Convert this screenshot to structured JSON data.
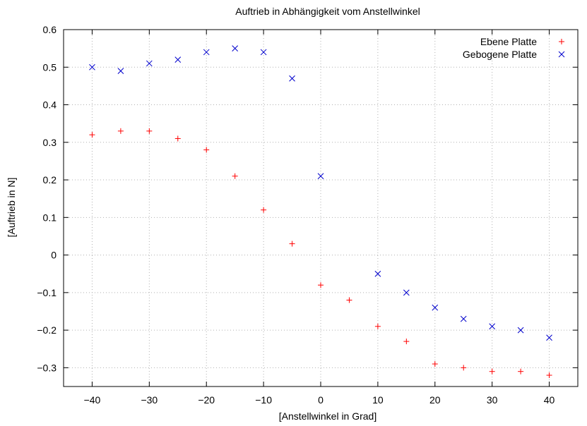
{
  "chart_data": {
    "type": "scatter",
    "title": "Auftrieb in Abhängigkeit vom Anstellwinkel",
    "xlabel": "[Anstellwinkel in Grad]",
    "ylabel": "[Auftrieb in N]",
    "xlim": [
      -45,
      45
    ],
    "ylim": [
      -0.35,
      0.6
    ],
    "xticks": [
      -40,
      -30,
      -20,
      -10,
      0,
      10,
      20,
      30,
      40
    ],
    "xtick_labels": [
      "−40",
      "−30",
      "−20",
      "−10",
      "0",
      "10",
      "20",
      "30",
      "40"
    ],
    "yticks": [
      -0.3,
      -0.2,
      -0.1,
      0,
      0.1,
      0.2,
      0.3,
      0.4,
      0.5,
      0.6
    ],
    "ytick_labels": [
      "−0.3",
      "−0.2",
      "−0.1",
      "0",
      "0.1",
      "0.2",
      "0.3",
      "0.4",
      "0.5",
      "0.6"
    ],
    "grid": true,
    "legend_position": "top-right",
    "series": [
      {
        "name": "Ebene Platte",
        "marker": "plus",
        "color": "#ff0000",
        "x": [
          -40,
          -35,
          -30,
          -25,
          -20,
          -15,
          -10,
          -5,
          0,
          5,
          10,
          15,
          20,
          25,
          30,
          35,
          40
        ],
        "y": [
          0.32,
          0.33,
          0.33,
          0.31,
          0.28,
          0.21,
          0.12,
          0.03,
          -0.08,
          -0.12,
          -0.19,
          -0.23,
          -0.29,
          -0.3,
          -0.31,
          -0.31,
          -0.32
        ]
      },
      {
        "name": "Gebogene Platte",
        "marker": "cross",
        "color": "#0000cc",
        "x": [
          -40,
          -35,
          -30,
          -25,
          -20,
          -15,
          -10,
          -5,
          0,
          10,
          15,
          20,
          25,
          30,
          35,
          40
        ],
        "y": [
          0.5,
          0.49,
          0.51,
          0.52,
          0.54,
          0.55,
          0.54,
          0.47,
          0.21,
          -0.05,
          -0.1,
          -0.14,
          -0.17,
          -0.19,
          -0.2,
          -0.22
        ]
      }
    ]
  }
}
